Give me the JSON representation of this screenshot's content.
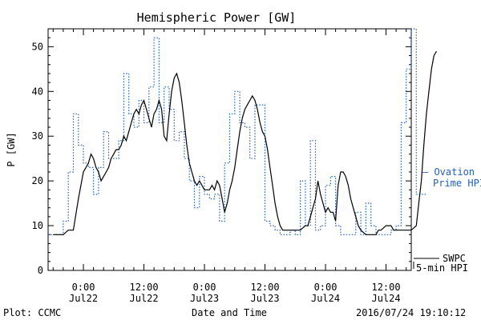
{
  "chart_data": {
    "type": "line",
    "title": "Hemispheric Power [GW]",
    "ylabel": "P [GW]",
    "xlabel": "Date and Time",
    "ylim": [
      0,
      54
    ],
    "xlim_hours": [
      -7,
      65
    ],
    "y_ticks": [
      0,
      10,
      20,
      30,
      40,
      50
    ],
    "x_ticks": [
      {
        "h": 0,
        "time": "0:00",
        "date": "Jul22"
      },
      {
        "h": 12,
        "time": "12:00",
        "date": "Jul22"
      },
      {
        "h": 24,
        "time": "0:00",
        "date": "Jul23"
      },
      {
        "h": 36,
        "time": "12:00",
        "date": "Jul23"
      },
      {
        "h": 48,
        "time": "0:00",
        "date": "Jul24"
      },
      {
        "h": 60,
        "time": "12:00",
        "date": "Jul24"
      }
    ],
    "series": [
      {
        "name": "SWPC 5-min HPI",
        "color": "#000000",
        "style": "solid",
        "points": [
          [
            -6,
            8
          ],
          [
            -4,
            8
          ],
          [
            -3,
            9
          ],
          [
            -2,
            9
          ],
          [
            -1,
            16
          ],
          [
            0,
            22
          ],
          [
            0.5,
            23
          ],
          [
            1,
            24
          ],
          [
            1.5,
            26
          ],
          [
            2,
            25
          ],
          [
            2.5,
            23
          ],
          [
            3,
            22
          ],
          [
            3.5,
            20
          ],
          [
            4,
            21
          ],
          [
            4.5,
            22
          ],
          [
            5,
            23
          ],
          [
            5.5,
            25
          ],
          [
            6,
            26
          ],
          [
            6.5,
            27
          ],
          [
            7,
            27
          ],
          [
            7.5,
            28
          ],
          [
            8,
            30
          ],
          [
            8.5,
            29
          ],
          [
            9,
            31
          ],
          [
            9.5,
            33
          ],
          [
            10,
            35
          ],
          [
            10.5,
            36
          ],
          [
            11,
            35
          ],
          [
            11.5,
            37
          ],
          [
            12,
            38
          ],
          [
            12.5,
            36
          ],
          [
            13,
            34
          ],
          [
            13.5,
            32
          ],
          [
            14,
            35
          ],
          [
            14.5,
            36
          ],
          [
            15,
            38
          ],
          [
            15.5,
            36
          ],
          [
            16,
            30
          ],
          [
            16.5,
            29
          ],
          [
            17,
            35
          ],
          [
            17.5,
            40
          ],
          [
            18,
            43
          ],
          [
            18.5,
            44
          ],
          [
            19,
            42
          ],
          [
            19.5,
            38
          ],
          [
            20,
            33
          ],
          [
            20.5,
            28
          ],
          [
            21,
            24
          ],
          [
            21.5,
            22
          ],
          [
            22,
            20
          ],
          [
            22.5,
            19
          ],
          [
            23,
            20
          ],
          [
            23.5,
            19
          ],
          [
            24,
            18
          ],
          [
            24.5,
            18
          ],
          [
            25,
            18
          ],
          [
            25.5,
            19
          ],
          [
            26,
            18
          ],
          [
            26.5,
            20
          ],
          [
            27,
            19
          ],
          [
            27.5,
            16
          ],
          [
            28,
            13
          ],
          [
            28.5,
            15
          ],
          [
            29,
            18
          ],
          [
            29.5,
            20
          ],
          [
            30,
            23
          ],
          [
            30.5,
            27
          ],
          [
            31,
            31
          ],
          [
            31.5,
            34
          ],
          [
            32,
            36
          ],
          [
            32.5,
            37
          ],
          [
            33,
            38
          ],
          [
            33.5,
            39
          ],
          [
            34,
            38
          ],
          [
            34.5,
            36
          ],
          [
            35,
            33
          ],
          [
            35.5,
            31
          ],
          [
            36,
            30
          ],
          [
            36.5,
            27
          ],
          [
            37,
            23
          ],
          [
            37.5,
            19
          ],
          [
            38,
            15
          ],
          [
            38.5,
            12
          ],
          [
            39,
            10
          ],
          [
            39.5,
            9
          ],
          [
            40,
            9
          ],
          [
            41,
            9
          ],
          [
            42,
            9
          ],
          [
            43,
            9
          ],
          [
            44,
            10
          ],
          [
            44.5,
            10
          ],
          [
            45,
            12
          ],
          [
            45.5,
            14
          ],
          [
            46,
            16
          ],
          [
            46.5,
            20
          ],
          [
            47,
            17
          ],
          [
            47.5,
            15
          ],
          [
            48,
            13
          ],
          [
            48.5,
            14
          ],
          [
            49,
            13
          ],
          [
            49.5,
            13
          ],
          [
            50,
            11
          ],
          [
            50.5,
            19
          ],
          [
            51,
            22
          ],
          [
            51.5,
            22
          ],
          [
            52,
            21
          ],
          [
            52.5,
            19
          ],
          [
            53,
            16
          ],
          [
            53.5,
            14
          ],
          [
            54,
            12
          ],
          [
            54.5,
            10
          ],
          [
            55,
            9
          ],
          [
            56,
            8
          ],
          [
            57,
            8
          ],
          [
            58,
            8
          ],
          [
            58.5,
            9
          ],
          [
            59,
            9
          ],
          [
            60,
            10
          ],
          [
            61,
            10
          ],
          [
            61.5,
            9
          ],
          [
            62,
            9
          ],
          [
            63,
            9
          ],
          [
            64,
            9
          ],
          [
            65,
            9
          ],
          [
            66,
            10
          ],
          [
            66.5,
            15
          ],
          [
            67,
            20
          ],
          [
            67.5,
            28
          ],
          [
            68,
            35
          ],
          [
            68.5,
            40
          ],
          [
            69,
            45
          ],
          [
            69.5,
            48
          ],
          [
            70,
            49
          ]
        ]
      },
      {
        "name": "Ovation Prime HPI",
        "color": "#1f5fbf",
        "style": "dotted",
        "points": [
          [
            -7,
            8
          ],
          [
            -5,
            8
          ],
          [
            -4,
            11
          ],
          [
            -3,
            22
          ],
          [
            -2,
            35
          ],
          [
            -1,
            28
          ],
          [
            0,
            24
          ],
          [
            1,
            23
          ],
          [
            2,
            17
          ],
          [
            3,
            23
          ],
          [
            4,
            31
          ],
          [
            5,
            25
          ],
          [
            6,
            25
          ],
          [
            7,
            29
          ],
          [
            8,
            44
          ],
          [
            9,
            35
          ],
          [
            10,
            32
          ],
          [
            11,
            38
          ],
          [
            12,
            33
          ],
          [
            13,
            41
          ],
          [
            14,
            52
          ],
          [
            15,
            33
          ],
          [
            16,
            41
          ],
          [
            17,
            36
          ],
          [
            18,
            29
          ],
          [
            19,
            31
          ],
          [
            20,
            25
          ],
          [
            21,
            20
          ],
          [
            22,
            14
          ],
          [
            23,
            21
          ],
          [
            24,
            17
          ],
          [
            25,
            16
          ],
          [
            26,
            17
          ],
          [
            27,
            11
          ],
          [
            28,
            24
          ],
          [
            29,
            35
          ],
          [
            30,
            40
          ],
          [
            31,
            33
          ],
          [
            32,
            32
          ],
          [
            33,
            25
          ],
          [
            34,
            37
          ],
          [
            35,
            37
          ],
          [
            36,
            11
          ],
          [
            37,
            10
          ],
          [
            38,
            9
          ],
          [
            39,
            8
          ],
          [
            40,
            8
          ],
          [
            41,
            9
          ],
          [
            42,
            8
          ],
          [
            43,
            20
          ],
          [
            44,
            10
          ],
          [
            45,
            29
          ],
          [
            46,
            9
          ],
          [
            47,
            10
          ],
          [
            48,
            19
          ],
          [
            49,
            21
          ],
          [
            50,
            10
          ],
          [
            51,
            8
          ],
          [
            52,
            8
          ],
          [
            53,
            8
          ],
          [
            54,
            13
          ],
          [
            55,
            8
          ],
          [
            56,
            15
          ],
          [
            57,
            10
          ],
          [
            58,
            8
          ],
          [
            59,
            8
          ],
          [
            60,
            8
          ],
          [
            61,
            9
          ],
          [
            62,
            10
          ],
          [
            63,
            33
          ],
          [
            64,
            45
          ],
          [
            65,
            54
          ],
          [
            66,
            17
          ],
          [
            67,
            17
          ]
        ]
      }
    ],
    "legend": [
      {
        "text1": "— Ovation",
        "text2": "Prime HPI",
        "color": "#1f5fbf"
      },
      {
        "text1": "SWPC",
        "text2": "5-min HPI",
        "color": "#000000"
      }
    ],
    "footer_left": "Plot: CCMC",
    "footer_right": "2016/07/24 19:10:12"
  },
  "colors": {
    "ovation": "#1f5fbf",
    "swpc": "#000000",
    "background": "#ffffff"
  }
}
